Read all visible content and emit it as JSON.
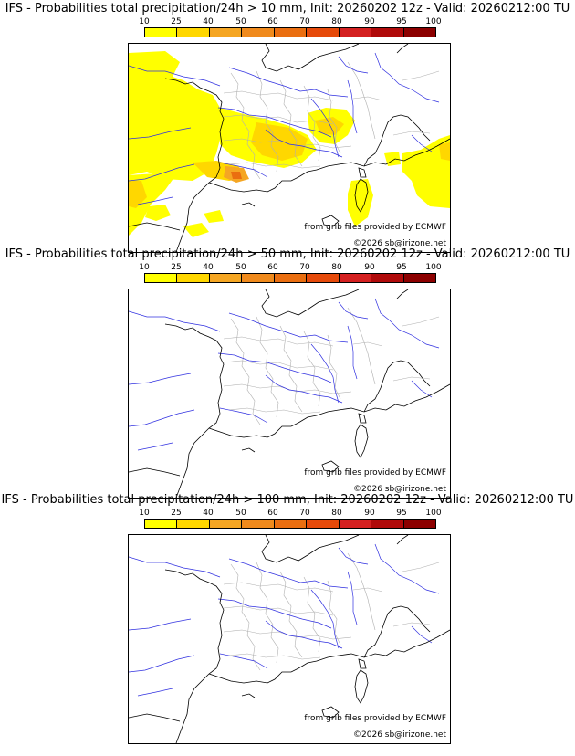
{
  "panels": [
    {
      "title": "IFS - Probabilities total precipitation/24h > 10 mm, Init: 20260202 12z - Valid: 20260212:00 TU",
      "has_precip": true
    },
    {
      "title": "IFS - Probabilities total precipitation/24h > 50 mm, Init: 20260202 12z - Valid: 20260212:00 TU",
      "has_precip": false
    },
    {
      "title": "IFS - Probabilities total precipitation/24h > 100 mm, Init: 20260202 12z - Valid: 20260212:00 TU",
      "has_precip": false
    }
  ],
  "scale": {
    "labels": [
      "10",
      "25",
      "40",
      "50",
      "60",
      "70",
      "80",
      "90",
      "95",
      "100"
    ],
    "colors": [
      "#ffff00",
      "#ffd700",
      "#f5a623",
      "#f08a1c",
      "#ea6e10",
      "#e64a0a",
      "#d42020",
      "#b00a0a",
      "#8c0000",
      "#5c0000"
    ]
  },
  "credits": {
    "source": "from grib files provided by ECMWF",
    "copyright": "©2026 sb@irizone.net"
  },
  "map_colors": {
    "coast": "#000000",
    "rivers": "#3030e0",
    "borders": "#b0b0b0",
    "precip_light": "#ffff00",
    "precip_mid": "#ffd700",
    "precip_high": "#f5a623",
    "precip_peak": "#ea6e10"
  }
}
